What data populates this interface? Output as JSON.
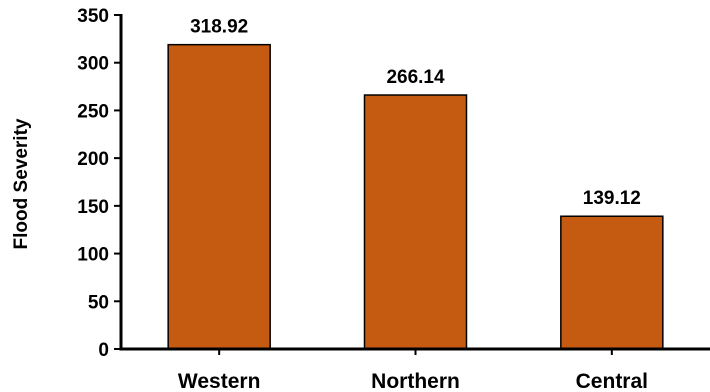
{
  "chart_data": {
    "type": "bar",
    "title": "",
    "xlabel": "",
    "ylabel": "Flood Severity",
    "categories": [
      "Western",
      "Northern",
      "Central"
    ],
    "values": [
      318.92,
      266.14,
      139.12
    ],
    "value_labels": [
      "318.92",
      "266.14",
      "139.12"
    ],
    "ylim": [
      0,
      350
    ],
    "yticks": [
      0,
      50,
      100,
      150,
      200,
      250,
      300,
      350
    ],
    "ytick_labels": [
      "0",
      "50",
      "100",
      "150",
      "200",
      "250",
      "300",
      "350"
    ],
    "grid": false,
    "legend": "none",
    "bar_color": "#c55a11",
    "bar_edge_color": "#000000"
  }
}
